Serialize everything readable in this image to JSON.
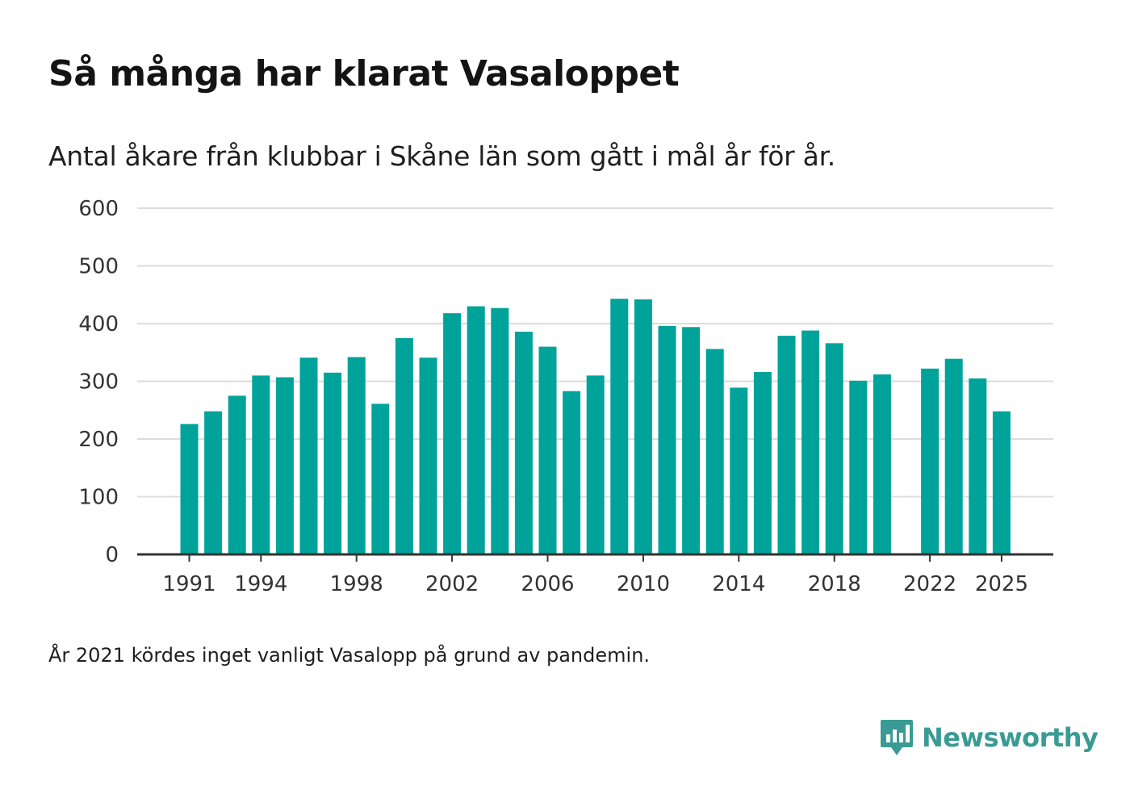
{
  "title": "Så många har klarat Vasaloppet",
  "subtitle": "Antal åkare från klubbar i Skåne län som gått i mål år för år.",
  "footnote": "År 2021 kördes inget vanligt Vasalopp på grund av pandemin.",
  "brand": {
    "name": "Newsworthy",
    "icon": "newsworthy-logo-icon",
    "color": "#3a9b94"
  },
  "chart_data": {
    "type": "bar",
    "title": "Så många har klarat Vasaloppet",
    "xlabel": "",
    "ylabel": "",
    "color": "#00a39a",
    "ylim": [
      0,
      600
    ],
    "yticks": [
      0,
      100,
      200,
      300,
      400,
      500,
      600
    ],
    "xticks": [
      1991,
      1994,
      1998,
      2002,
      2006,
      2010,
      2014,
      2018,
      2022,
      2025
    ],
    "grid": true,
    "categories": [
      1991,
      1992,
      1993,
      1994,
      1995,
      1996,
      1997,
      1998,
      1999,
      2000,
      2001,
      2002,
      2003,
      2004,
      2005,
      2006,
      2007,
      2008,
      2009,
      2010,
      2011,
      2012,
      2013,
      2014,
      2015,
      2016,
      2017,
      2018,
      2019,
      2020,
      2021,
      2022,
      2023,
      2024,
      2025
    ],
    "values": [
      226,
      248,
      275,
      310,
      307,
      341,
      315,
      342,
      261,
      375,
      341,
      418,
      430,
      427,
      386,
      360,
      283,
      310,
      443,
      442,
      396,
      394,
      356,
      289,
      316,
      379,
      388,
      366,
      301,
      312,
      null,
      322,
      339,
      305,
      248
    ]
  }
}
